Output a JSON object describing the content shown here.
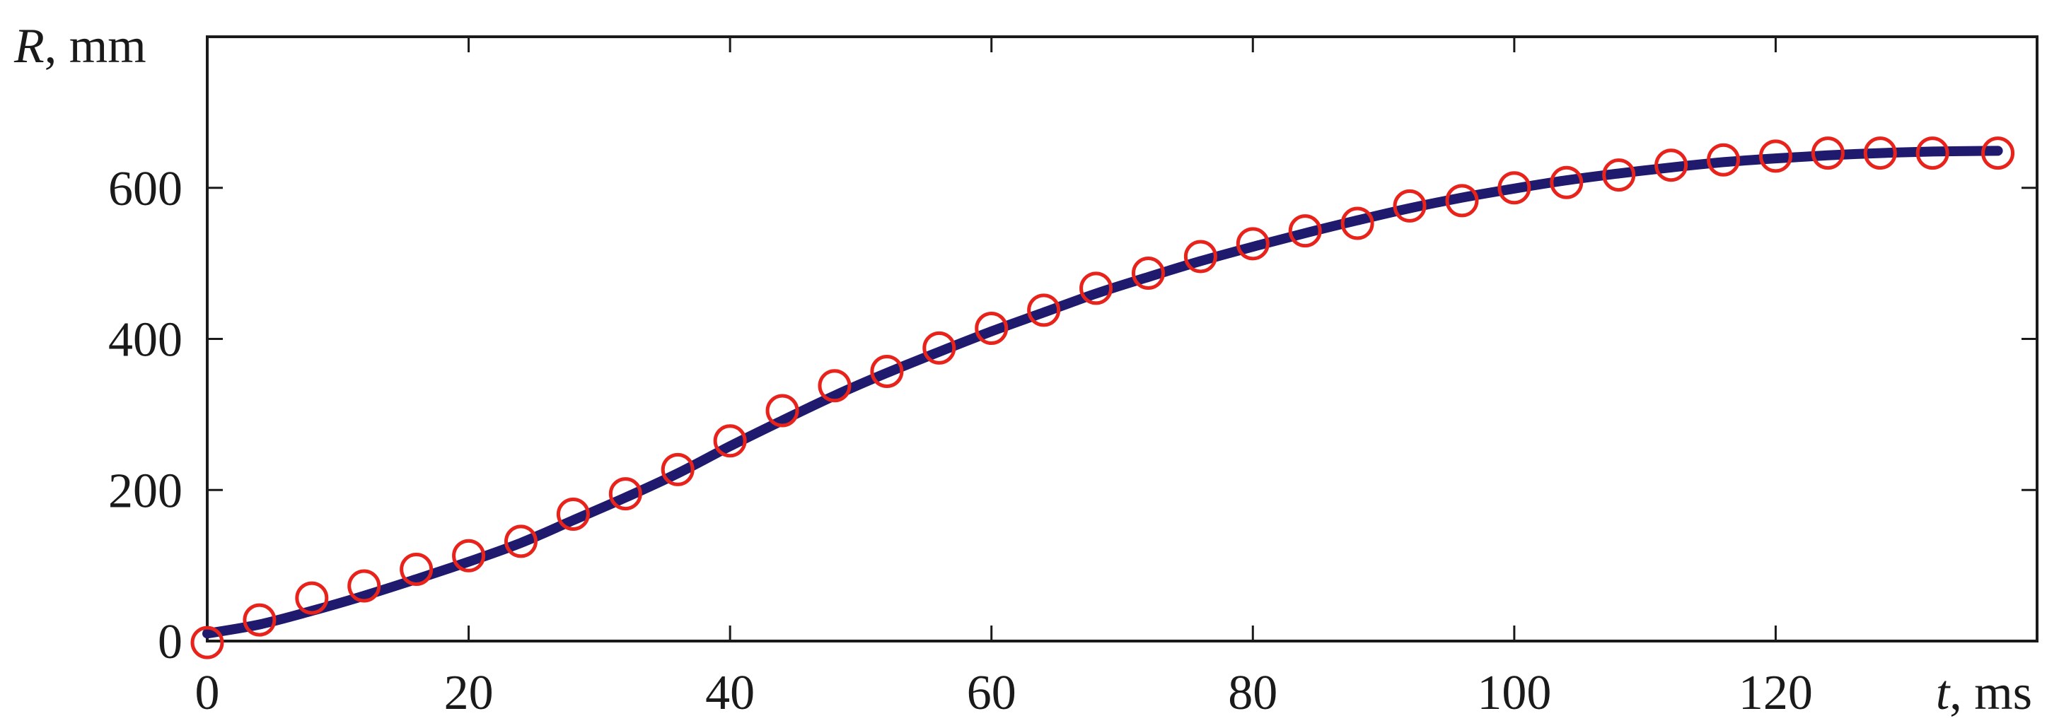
{
  "chart_data": {
    "type": "line",
    "title": "",
    "xlabel": {
      "symbol": "t",
      "unit": ", ms"
    },
    "ylabel": {
      "symbol": "R",
      "unit": ", mm"
    },
    "xlim": [
      0,
      140
    ],
    "ylim": [
      0,
      800
    ],
    "xticks": [
      0,
      20,
      40,
      60,
      80,
      100,
      120
    ],
    "yticks": [
      0,
      200,
      400,
      600
    ],
    "grid": false,
    "legend": "none",
    "series": [
      {
        "kind": "line",
        "color": "#1f1a6e",
        "x": [
          0,
          4,
          8,
          12,
          16,
          20,
          24,
          28,
          32,
          36,
          40,
          44,
          48,
          52,
          56,
          60,
          64,
          68,
          72,
          76,
          80,
          84,
          88,
          92,
          96,
          100,
          104,
          108,
          112,
          116,
          120,
          124,
          128,
          132,
          137
        ],
        "y": [
          10,
          22,
          40,
          60,
          82,
          105,
          130,
          160,
          190,
          222,
          258,
          292,
          325,
          355,
          383,
          410,
          435,
          460,
          482,
          503,
          522,
          540,
          557,
          573,
          587,
          599,
          610,
          619,
          627,
          634,
          639,
          643,
          646,
          648,
          649
        ]
      },
      {
        "kind": "scatter",
        "marker": "circle-open",
        "color": "#e8231c",
        "x": [
          0,
          4,
          8,
          12,
          16,
          20,
          24,
          28,
          32,
          36,
          40,
          44,
          48,
          52,
          56,
          60,
          64,
          68,
          72,
          76,
          80,
          84,
          88,
          92,
          96,
          100,
          104,
          108,
          112,
          116,
          120,
          124,
          128,
          132,
          137
        ],
        "y": [
          -2,
          28,
          57,
          73,
          95,
          113,
          132,
          168,
          195,
          227,
          265,
          305,
          338,
          357,
          388,
          414,
          438,
          467,
          487,
          509,
          526,
          543,
          553,
          576,
          583,
          600,
          607,
          617,
          630,
          637,
          642,
          646,
          646,
          646,
          646
        ]
      }
    ]
  }
}
